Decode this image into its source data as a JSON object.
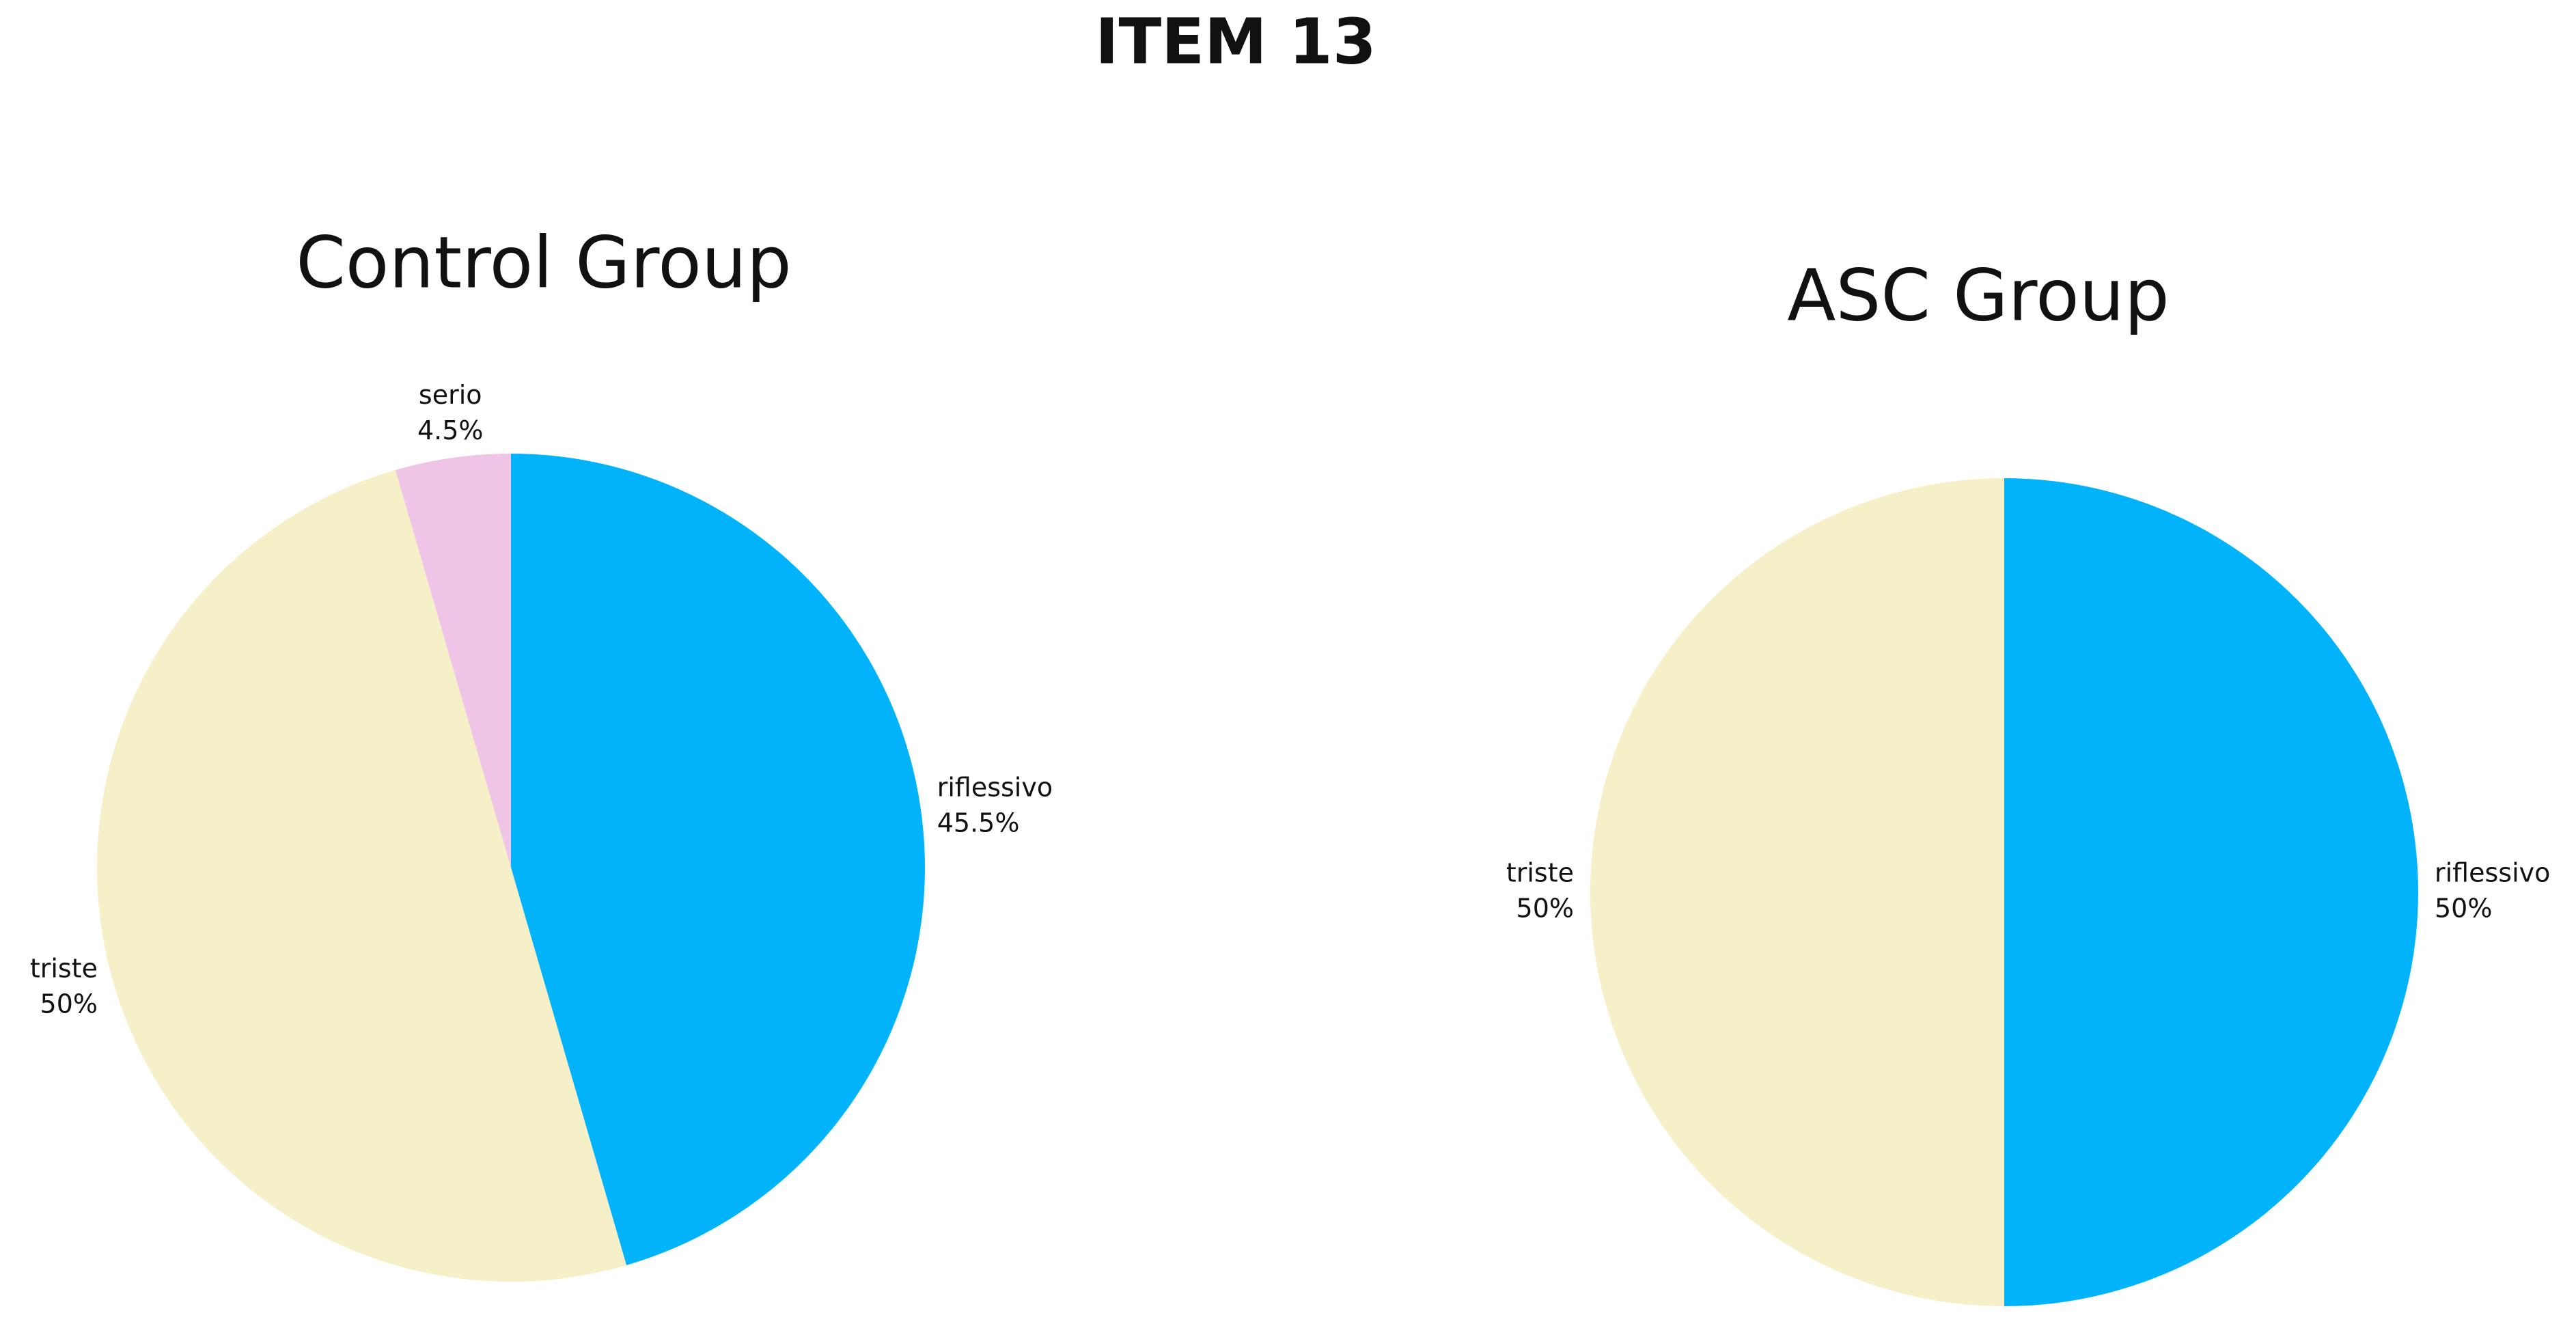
{
  "title": "ITEM 13",
  "chart_data": [
    {
      "type": "pie",
      "title": "Control Group",
      "categories": [
        "riflessivo",
        "triste",
        "serio"
      ],
      "values": [
        45.5,
        50,
        4.5
      ],
      "value_labels": [
        "45.5%",
        "50%",
        "4.5%"
      ],
      "colors": [
        "#00b3fa",
        "#f6f0c9",
        "#efc4e6"
      ]
    },
    {
      "type": "pie",
      "title": "ASC Group",
      "categories": [
        "riflessivo",
        "triste"
      ],
      "values": [
        50,
        50
      ],
      "value_labels": [
        "50%",
        "50%"
      ],
      "colors": [
        "#00b3fa",
        "#f6f0c9"
      ]
    }
  ]
}
